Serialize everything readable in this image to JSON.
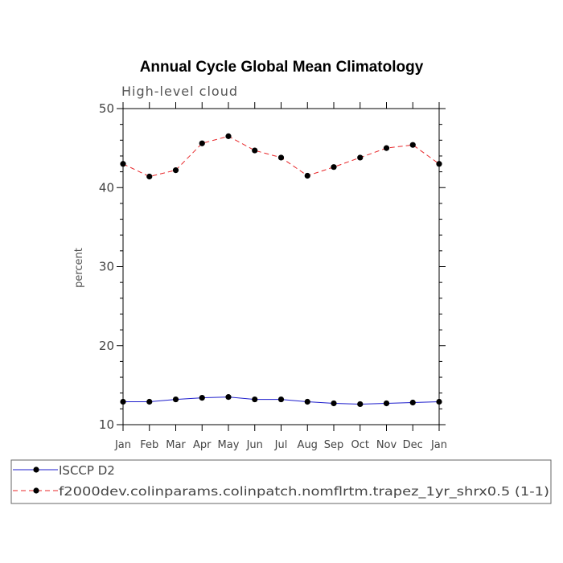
{
  "chart_data": {
    "type": "line",
    "title": "Annual Cycle Global Mean Climatology",
    "subtitle": "High-level cloud",
    "xlabel": "",
    "ylabel": "percent",
    "categories": [
      "Jan",
      "Feb",
      "Mar",
      "Apr",
      "May",
      "Jun",
      "Jul",
      "Aug",
      "Sep",
      "Oct",
      "Nov",
      "Dec",
      "Jan"
    ],
    "ylim": [
      10,
      50
    ],
    "yticks": [
      10,
      20,
      30,
      40,
      50
    ],
    "series": [
      {
        "name": "ISCCP D2",
        "color": "#1c1ccc",
        "dash": "solid",
        "values": [
          12.9,
          12.9,
          13.2,
          13.4,
          13.5,
          13.2,
          13.2,
          12.9,
          12.7,
          12.6,
          12.7,
          12.8,
          12.9
        ]
      },
      {
        "name": "f2000dev.colinparams.colinpatch.nomflrtm.trapez_1yr_shrx0.5 (1-1)",
        "color": "#e8272a",
        "dash": "dashed",
        "values": [
          43.0,
          41.4,
          42.2,
          45.6,
          46.5,
          44.7,
          43.8,
          41.5,
          42.6,
          43.8,
          45.0,
          45.4,
          43.0
        ]
      }
    ],
    "legend_position": "bottom"
  }
}
